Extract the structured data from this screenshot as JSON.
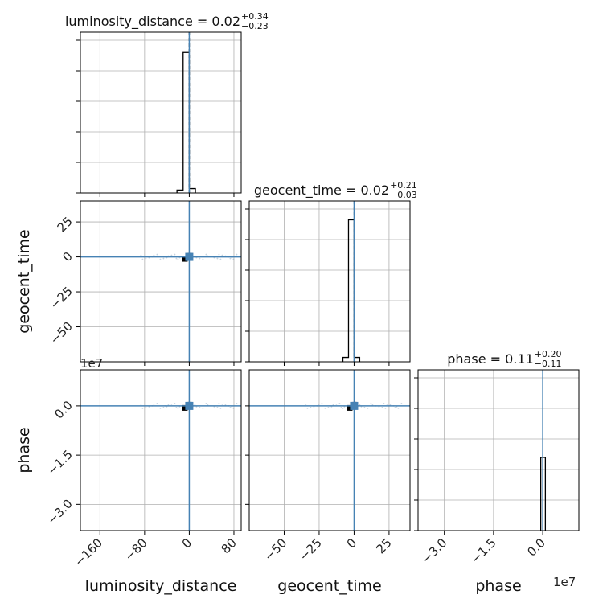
{
  "chart_data": {
    "type": "corner",
    "parameters": [
      "luminosity_distance",
      "geocent_time",
      "phase"
    ],
    "axis_labels": {
      "luminosity_distance": "luminosity_distance",
      "geocent_time": "geocent_time",
      "phase": "phase"
    },
    "titles": [
      {
        "param": "luminosity_distance",
        "text": "luminosity_distance = 0.02",
        "plus": "+0.34",
        "minus": "−0.23"
      },
      {
        "param": "geocent_time",
        "text": "geocent_time = 0.02",
        "plus": "+0.21",
        "minus": "−0.03"
      },
      {
        "param": "phase",
        "text": "phase = 0.11",
        "plus": "+0.20",
        "minus": "−0.11"
      }
    ],
    "ranges": {
      "luminosity_distance": [
        -195,
        93
      ],
      "geocent_time": [
        -75,
        40
      ],
      "phase": [
        -38000000.0,
        11000000.0
      ]
    },
    "ticks": {
      "luminosity_distance": [
        -160,
        -80,
        0,
        80
      ],
      "geocent_time": [
        -50,
        -25,
        0,
        25
      ],
      "phase": [
        -30000000.0,
        -15000000.0,
        0.0
      ]
    },
    "tick_labels": {
      "luminosity_distance": [
        "−160",
        "−80",
        "0",
        "80"
      ],
      "geocent_time": [
        "−50",
        "−25",
        "0",
        "25"
      ],
      "phase": [
        "−3.0",
        "−1.5",
        "0.0"
      ]
    },
    "geocent_time_row_ticks": [
      -50,
      -25,
      0,
      25
    ],
    "geocent_time_row_labels": [
      "−50",
      "−25",
      "0",
      "25"
    ],
    "phase_row_ticks": [
      -30000000.0,
      -15000000.0,
      0.0
    ],
    "phase_row_labels": [
      "−3.0",
      "−1.5",
      "0.0"
    ],
    "offset_label": "1e7",
    "truths": {
      "luminosity_distance": 0,
      "geocent_time": 0,
      "phase": 0
    },
    "quantiles": {
      "luminosity_distance": [
        -0.21,
        0.02,
        0.36
      ],
      "geocent_time": [
        -0.01,
        0.02,
        0.23
      ],
      "phase": [
        0.0,
        0.11,
        0.31
      ]
    },
    "histograms": {
      "luminosity_distance": {
        "bins": [
          -22,
          -11,
          0,
          11
        ],
        "counts": [
          0.02,
          0.96,
          0.03
        ]
      },
      "geocent_time": {
        "bins": [
          -8,
          -4,
          0,
          4
        ],
        "counts": [
          0.03,
          0.97,
          0.03
        ]
      },
      "phase": {
        "bins": [
          -600000.0,
          100000.0,
          800000.0
        ],
        "counts": [
          0.5,
          0.5
        ]
      }
    },
    "truth_color": "#4682b4",
    "hist_color": "#000000",
    "grid": true,
    "legend": false
  }
}
